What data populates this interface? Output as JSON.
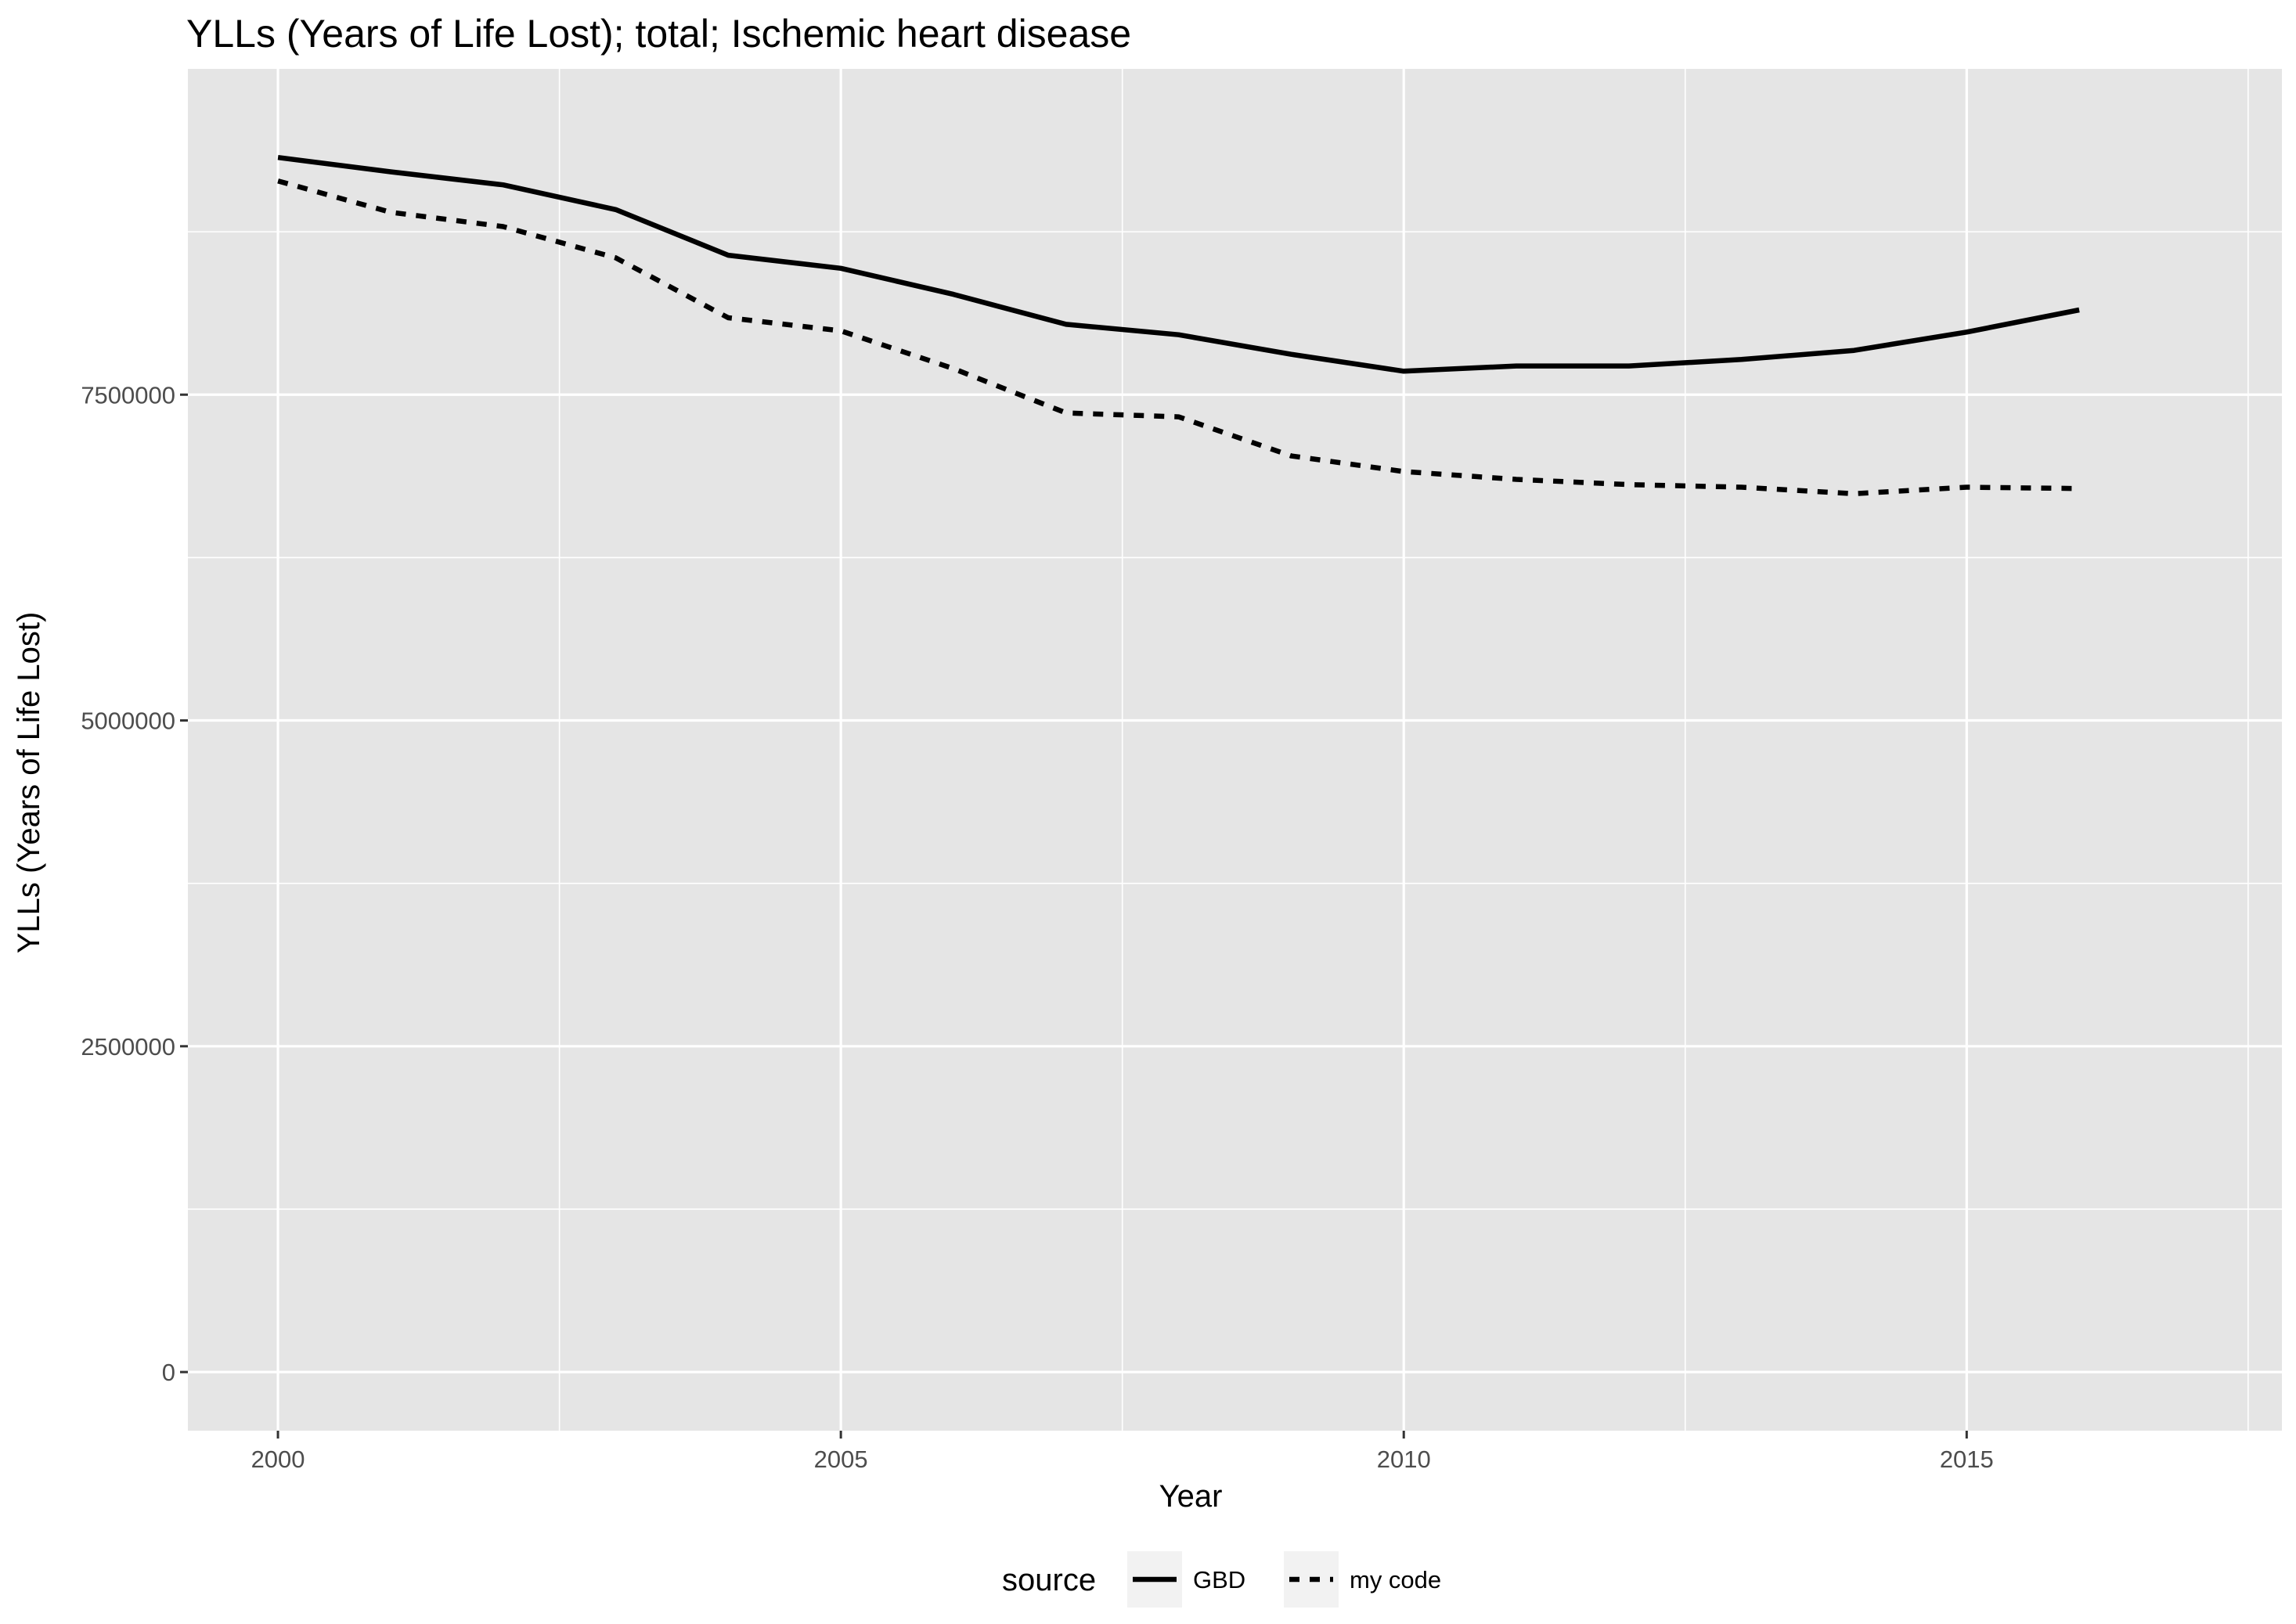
{
  "chart_data": {
    "type": "line",
    "title": "YLLs (Years of Life Lost); total; Ischemic heart disease",
    "xlabel": "Year",
    "ylabel": "YLLs (Years of Life Lost)",
    "x": [
      2000,
      2001,
      2002,
      2003,
      2004,
      2005,
      2006,
      2007,
      2008,
      2009,
      2010,
      2011,
      2012,
      2013,
      2014,
      2015,
      2016
    ],
    "xlim": [
      1999.2,
      2017.8
    ],
    "ylim": [
      -450000,
      10000000
    ],
    "x_ticks": [
      2000,
      2005,
      2010,
      2015
    ],
    "x_tick_labels": [
      "2000",
      "2005",
      "2010",
      "2015"
    ],
    "y_ticks": [
      0,
      2500000,
      5000000,
      7500000
    ],
    "y_tick_labels": [
      "0",
      "2500000",
      "5000000",
      "7500000"
    ],
    "grid": true,
    "legend": {
      "title": "source",
      "placement": "bottom"
    },
    "series": [
      {
        "name": "GBD",
        "linetype": "solid",
        "color": "#000000",
        "values": [
          9320000,
          9210000,
          9110000,
          8920000,
          8570000,
          8470000,
          8270000,
          8040000,
          7960000,
          7810000,
          7680000,
          7720000,
          7720000,
          7770000,
          7840000,
          7980000,
          8150000
        ]
      },
      {
        "name": "my code",
        "linetype": "dashed",
        "color": "#000000",
        "values": [
          9140000,
          8900000,
          8790000,
          8550000,
          8090000,
          7990000,
          7700000,
          7360000,
          7330000,
          7030000,
          6910000,
          6850000,
          6810000,
          6790000,
          6740000,
          6790000,
          6780000
        ]
      }
    ]
  },
  "colors": {
    "panel_background": "#e5e5e5",
    "grid_line": "#ffffff",
    "line": "#000000",
    "legend_key_background": "#f2f2f2"
  }
}
